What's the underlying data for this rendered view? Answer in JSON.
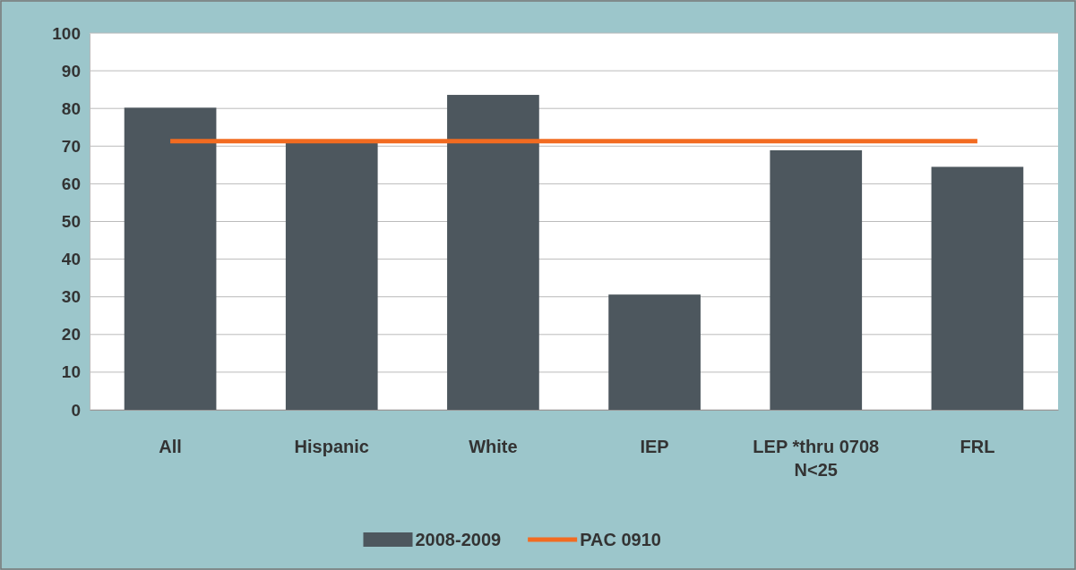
{
  "chart_data": {
    "type": "bar",
    "categories": [
      "All",
      "Hispanic",
      "White",
      "IEP",
      "LEP *thru 0708 N<25",
      "FRL"
    ],
    "series": [
      {
        "name": "2008-2009",
        "type": "bar",
        "color": "#4d575e",
        "values": [
          80.2,
          71.0,
          83.6,
          30.6,
          68.9,
          64.5
        ]
      },
      {
        "name": "PAC 0910",
        "type": "line",
        "color": "#f26b21",
        "values": [
          71.3,
          71.3,
          71.3,
          71.3,
          71.3,
          71.3
        ]
      }
    ],
    "ylim": [
      0,
      100
    ],
    "yticks": [
      0,
      10,
      20,
      30,
      40,
      50,
      60,
      70,
      80,
      90,
      100
    ],
    "grid": "y",
    "legend": "bottom",
    "marker": "none",
    "line_style": "solid"
  }
}
